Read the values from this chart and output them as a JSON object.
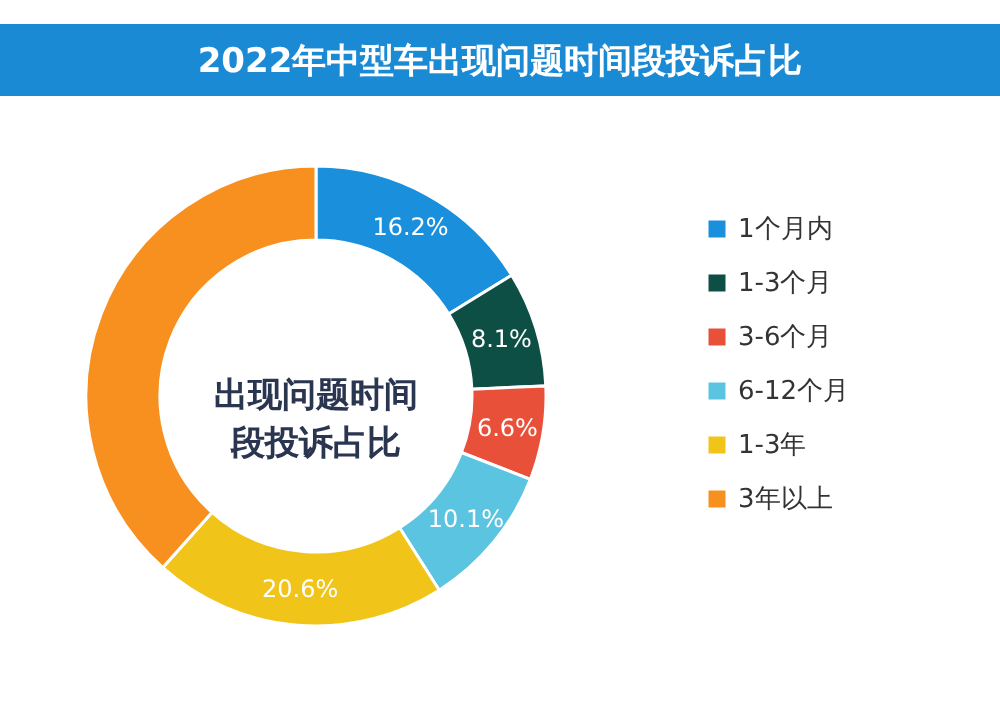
{
  "chart_data": {
    "type": "donut",
    "title": "2022年中型车出现问题时间段投诉占比",
    "categories": [
      "1个月内",
      "1-3个月",
      "3-6个月",
      "6-12个月",
      "1-3年",
      "3年以上"
    ],
    "values": [
      16.2,
      8.1,
      6.6,
      10.1,
      20.6,
      38.4
    ],
    "value_labels": [
      "16.2%",
      "8.1%",
      "6.6%",
      "10.1%",
      "20.6%",
      null
    ],
    "colors": [
      "#1a8fdc",
      "#0d4f45",
      "#e8503a",
      "#5bc4e0",
      "#f0c419",
      "#f7901e"
    ],
    "annotations": [
      "出现问题时间段投诉占比"
    ],
    "legend": "right"
  }
}
